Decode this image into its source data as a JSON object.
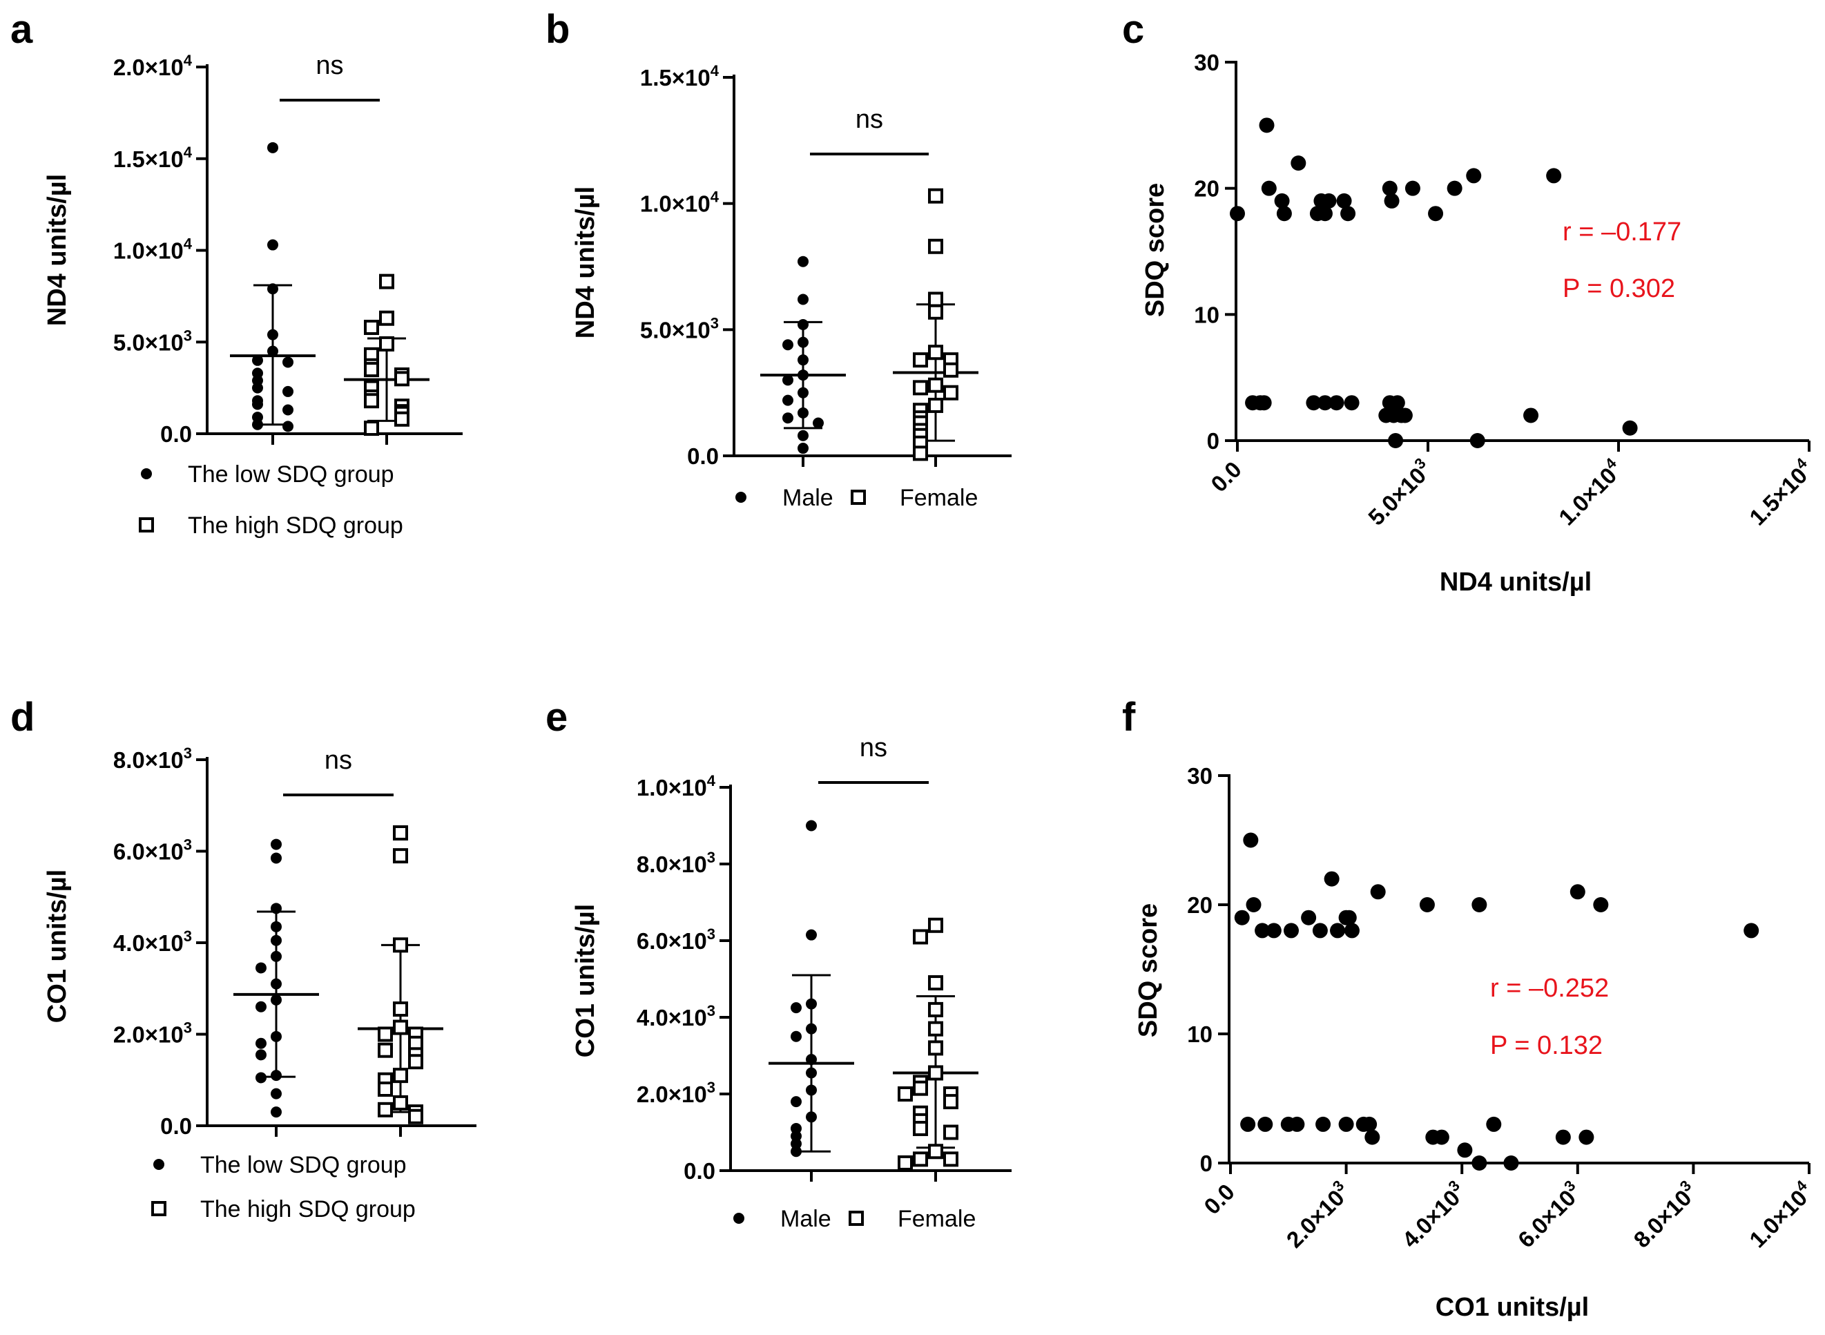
{
  "chart_data": [
    {
      "panel": "a",
      "type": "scatter",
      "ylabel": "ND4 units/µl",
      "ylim": [
        0,
        20000
      ],
      "yticks": [
        {
          "v": 0,
          "m": "0.0",
          "e": ""
        },
        {
          "v": 5000,
          "m": "5.0×10",
          "e": "3"
        },
        {
          "v": 10000,
          "m": "1.0×10",
          "e": "4"
        },
        {
          "v": 15000,
          "m": "1.5×10",
          "e": "4"
        },
        {
          "v": 20000,
          "m": "2.0×10",
          "e": "4"
        }
      ],
      "annotation": "ns",
      "legend": [
        {
          "marker": "circle",
          "label": "The low SDQ group"
        },
        {
          "marker": "square",
          "label": "The high SDQ group"
        }
      ],
      "groups": [
        {
          "name": "The low SDQ group",
          "marker": "circle",
          "mean": 4250,
          "sd_low": 500,
          "sd_high": 8100,
          "values": [
            15600,
            10300,
            7900,
            5400,
            4500,
            4000,
            3900,
            3300,
            2900,
            2500,
            2300,
            1800,
            1600,
            1300,
            900,
            500,
            400
          ]
        },
        {
          "name": "The high SDQ group",
          "marker": "square",
          "mean": 2950,
          "sd_low": 700,
          "sd_high": 5200,
          "values": [
            8300,
            6300,
            5800,
            4900,
            4300,
            3700,
            3500,
            3200,
            3000,
            2500,
            2000,
            1800,
            1500,
            1200,
            1100,
            800,
            300
          ]
        }
      ]
    },
    {
      "panel": "b",
      "type": "scatter",
      "ylabel": "ND4 units/µl",
      "ylim": [
        0,
        15000
      ],
      "yticks": [
        {
          "v": 0,
          "m": "0.0",
          "e": ""
        },
        {
          "v": 5000,
          "m": "5.0×10",
          "e": "3"
        },
        {
          "v": 10000,
          "m": "1.0×10",
          "e": "4"
        },
        {
          "v": 15000,
          "m": "1.5×10",
          "e": "4"
        }
      ],
      "annotation": "ns",
      "legend": [
        {
          "marker": "circle",
          "label": "Male"
        },
        {
          "marker": "square",
          "label": "Female"
        }
      ],
      "groups": [
        {
          "name": "Male",
          "marker": "circle",
          "mean": 3200,
          "sd_low": 1100,
          "sd_high": 5300,
          "values": [
            7700,
            6200,
            5200,
            4500,
            4400,
            3800,
            3200,
            3000,
            2500,
            2200,
            1700,
            1500,
            1300,
            800,
            300
          ]
        },
        {
          "name": "Female",
          "marker": "square",
          "mean": 3300,
          "sd_low": 600,
          "sd_high": 6000,
          "values": [
            10300,
            8300,
            6200,
            5700,
            4100,
            3800,
            3800,
            3400,
            2800,
            2700,
            2500,
            2000,
            1800,
            1500,
            1300,
            1000,
            800,
            500,
            100
          ]
        }
      ]
    },
    {
      "panel": "c",
      "type": "scatter",
      "xlabel": "ND4 units/µl",
      "ylabel": "SDQ score",
      "xlim": [
        0,
        15000
      ],
      "ylim": [
        0,
        30
      ],
      "xticks": [
        {
          "v": 0,
          "m": "0.0",
          "e": ""
        },
        {
          "v": 5000,
          "m": "5.0×10",
          "e": "3"
        },
        {
          "v": 10000,
          "m": "1.0×10",
          "e": "4"
        },
        {
          "v": 15000,
          "m": "1.5×10",
          "e": "4"
        }
      ],
      "yticks": [
        0,
        10,
        20,
        30
      ],
      "stats": [
        "r = –0.177",
        "P = 0.302"
      ],
      "points": [
        [
          0,
          18
        ],
        [
          770,
          25
        ],
        [
          830,
          20
        ],
        [
          1170,
          19
        ],
        [
          1230,
          18
        ],
        [
          1600,
          22
        ],
        [
          2100,
          18
        ],
        [
          2200,
          19
        ],
        [
          2300,
          18
        ],
        [
          2400,
          19
        ],
        [
          2800,
          19
        ],
        [
          2900,
          18
        ],
        [
          4000,
          20
        ],
        [
          4050,
          19
        ],
        [
          4600,
          20
        ],
        [
          5200,
          18
        ],
        [
          5700,
          20
        ],
        [
          6200,
          21
        ],
        [
          8300,
          21
        ],
        [
          400,
          3
        ],
        [
          600,
          3
        ],
        [
          700,
          3
        ],
        [
          2000,
          3
        ],
        [
          2300,
          3
        ],
        [
          2600,
          3
        ],
        [
          3000,
          3
        ],
        [
          3900,
          2
        ],
        [
          4000,
          3
        ],
        [
          4100,
          2
        ],
        [
          4200,
          3
        ],
        [
          4300,
          2
        ],
        [
          4400,
          2
        ],
        [
          4150,
          0
        ],
        [
          6300,
          0
        ],
        [
          7700,
          2
        ],
        [
          10300,
          1
        ]
      ]
    },
    {
      "panel": "d",
      "type": "scatter",
      "ylabel": "CO1 units/µl",
      "ylim": [
        0,
        8000
      ],
      "yticks": [
        {
          "v": 0,
          "m": "0.0",
          "e": ""
        },
        {
          "v": 2000,
          "m": "2.0×10",
          "e": "3"
        },
        {
          "v": 4000,
          "m": "4.0×10",
          "e": "3"
        },
        {
          "v": 6000,
          "m": "6.0×10",
          "e": "3"
        },
        {
          "v": 8000,
          "m": "8.0×10",
          "e": "3"
        }
      ],
      "annotation": "ns",
      "legend": [
        {
          "marker": "circle",
          "label": "The low SDQ group"
        },
        {
          "marker": "square",
          "label": "The high SDQ group"
        }
      ],
      "groups": [
        {
          "name": "The low SDQ group",
          "marker": "circle",
          "mean": 2870,
          "sd_low": 1070,
          "sd_high": 4680,
          "values": [
            6150,
            5850,
            4750,
            4350,
            4050,
            3700,
            3450,
            3100,
            2750,
            2600,
            1950,
            1800,
            1550,
            1100,
            1050,
            700,
            300
          ]
        },
        {
          "name": "The high SDQ group",
          "marker": "square",
          "mean": 2120,
          "sd_low": 300,
          "sd_high": 3950,
          "values": [
            6400,
            5900,
            3950,
            2550,
            2150,
            2000,
            2000,
            1800,
            1650,
            1550,
            1400,
            1100,
            1000,
            800,
            500,
            350,
            300,
            200
          ]
        }
      ]
    },
    {
      "panel": "e",
      "type": "scatter",
      "ylabel": "CO1 units/µl",
      "ylim": [
        0,
        10000
      ],
      "yticks": [
        {
          "v": 0,
          "m": "0.0",
          "e": ""
        },
        {
          "v": 2000,
          "m": "2.0×10",
          "e": "3"
        },
        {
          "v": 4000,
          "m": "4.0×10",
          "e": "3"
        },
        {
          "v": 6000,
          "m": "6.0×10",
          "e": "3"
        },
        {
          "v": 8000,
          "m": "8.0×10",
          "e": "3"
        },
        {
          "v": 10000,
          "m": "1.0×10",
          "e": "4"
        }
      ],
      "annotation": "ns",
      "legend": [
        {
          "marker": "circle",
          "label": "Male"
        },
        {
          "marker": "square",
          "label": "Female"
        }
      ],
      "groups": [
        {
          "name": "Male",
          "marker": "circle",
          "mean": 2800,
          "sd_low": 500,
          "sd_high": 5100,
          "values": [
            9000,
            6150,
            4350,
            4250,
            3700,
            3500,
            2900,
            2550,
            2100,
            1800,
            1400,
            1100,
            900,
            700,
            500
          ]
        },
        {
          "name": "Female",
          "marker": "square",
          "mean": 2550,
          "sd_low": 600,
          "sd_high": 4550,
          "values": [
            6400,
            6100,
            4900,
            4200,
            3700,
            3200,
            2550,
            2300,
            2150,
            2000,
            2000,
            1800,
            1500,
            1300,
            1100,
            1000,
            500,
            300,
            300,
            200
          ]
        }
      ]
    },
    {
      "panel": "f",
      "type": "scatter",
      "xlabel": "CO1 units/µl",
      "ylabel": "SDQ score",
      "xlim": [
        0,
        10000
      ],
      "ylim": [
        0,
        30
      ],
      "xticks": [
        {
          "v": 0,
          "m": "0.0",
          "e": ""
        },
        {
          "v": 2000,
          "m": "2.0×10",
          "e": "3"
        },
        {
          "v": 4000,
          "m": "4.0×10",
          "e": "3"
        },
        {
          "v": 6000,
          "m": "6.0×10",
          "e": "3"
        },
        {
          "v": 8000,
          "m": "8.0×10",
          "e": "3"
        },
        {
          "v": 10000,
          "m": "1.0×10",
          "e": "4"
        }
      ],
      "yticks": [
        0,
        10,
        20,
        30
      ],
      "stats": [
        "r = –0.252",
        "P = 0.132"
      ],
      "points": [
        [
          200,
          19
        ],
        [
          350,
          25
        ],
        [
          400,
          20
        ],
        [
          550,
          18
        ],
        [
          750,
          18
        ],
        [
          1050,
          18
        ],
        [
          1350,
          19
        ],
        [
          1550,
          18
        ],
        [
          1750,
          22
        ],
        [
          1850,
          18
        ],
        [
          2000,
          19
        ],
        [
          2050,
          19
        ],
        [
          2100,
          18
        ],
        [
          2550,
          21
        ],
        [
          3400,
          20
        ],
        [
          4300,
          20
        ],
        [
          6000,
          21
        ],
        [
          6400,
          20
        ],
        [
          9000,
          18
        ],
        [
          300,
          3
        ],
        [
          600,
          3
        ],
        [
          1000,
          3
        ],
        [
          1150,
          3
        ],
        [
          1600,
          3
        ],
        [
          2000,
          3
        ],
        [
          2300,
          3
        ],
        [
          2400,
          3
        ],
        [
          2450,
          2
        ],
        [
          3500,
          2
        ],
        [
          3650,
          2
        ],
        [
          4050,
          1
        ],
        [
          4300,
          0
        ],
        [
          4550,
          3
        ],
        [
          4850,
          0
        ],
        [
          5750,
          2
        ],
        [
          6150,
          2
        ]
      ]
    }
  ]
}
